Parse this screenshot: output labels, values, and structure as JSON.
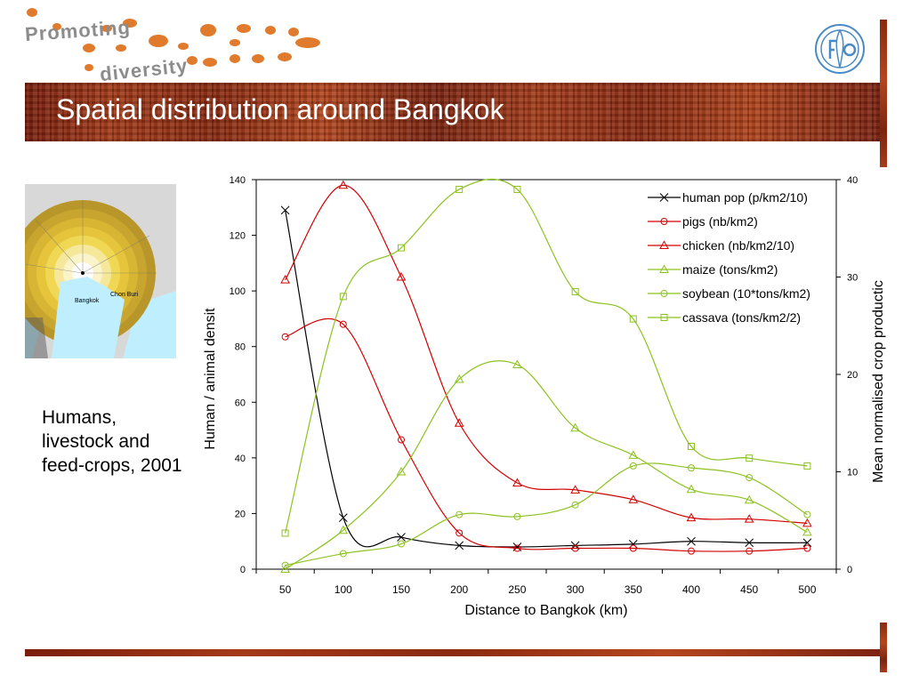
{
  "header": {
    "logo_line1": "Promoting",
    "logo_line2": "diversity",
    "title": "Spatial distribution around Bangkok"
  },
  "map": {
    "label_bangkok": "Bangkok",
    "label_chonburi": "Chon Buri"
  },
  "caption": "Humans, livestock and feed-crops, 2001",
  "colors": {
    "banner": "#8a2a10",
    "human": "#000000",
    "animal": "#d40000",
    "crop": "#8cc21e"
  },
  "chart_data": {
    "type": "line",
    "xlabel": "Distance to Bangkok (km)",
    "ylabel": "Human / animal densit",
    "y2label": "Mean normalised crop productic",
    "x": [
      50,
      100,
      150,
      200,
      250,
      300,
      350,
      400,
      450,
      500
    ],
    "ylim": [
      0,
      140
    ],
    "y2lim": [
      0,
      40
    ],
    "yticks": [
      0,
      20,
      40,
      60,
      80,
      100,
      120,
      140
    ],
    "y2ticks": [
      0,
      10,
      20,
      30,
      40
    ],
    "legend_position": "top-right",
    "series": [
      {
        "name": "human pop (p/km2/10)",
        "axis": "left",
        "marker": "x",
        "color": "#000000",
        "values": [
          129,
          18.5,
          11.5,
          8.5,
          8,
          8.5,
          9,
          10,
          9.5,
          9.5
        ]
      },
      {
        "name": "pigs (nb/km2)",
        "axis": "left",
        "marker": "circle",
        "color": "#d40000",
        "values": [
          83.5,
          88,
          46.5,
          13,
          7.5,
          7.5,
          7.5,
          6.5,
          6.5,
          7.5
        ]
      },
      {
        "name": "chicken (nb/km2/10)",
        "axis": "left",
        "marker": "triangle",
        "color": "#d40000",
        "values": [
          104,
          138,
          105,
          52.5,
          31,
          28.5,
          25,
          18.5,
          18,
          16.5
        ]
      },
      {
        "name": "maize (tons/km2)",
        "axis": "right",
        "marker": "triangle",
        "color": "#8cc21e",
        "values": [
          0,
          4,
          10,
          19.5,
          21,
          14.5,
          11.7,
          8.2,
          7.1,
          3.8
        ]
      },
      {
        "name": "soybean (10*tons/km2)",
        "axis": "right",
        "marker": "circle",
        "color": "#8cc21e",
        "values": [
          0.4,
          1.6,
          2.6,
          5.6,
          5.4,
          6.6,
          10.6,
          10.4,
          9.4,
          5.6
        ]
      },
      {
        "name": "cassava (tons/km2/2)",
        "axis": "right",
        "marker": "square",
        "color": "#8cc21e",
        "values": [
          3.7,
          28,
          33,
          39,
          39,
          28.5,
          25.7,
          12.6,
          11.4,
          10.6
        ]
      }
    ]
  }
}
